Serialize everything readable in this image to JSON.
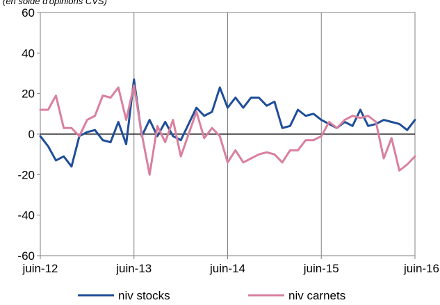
{
  "chart_data": {
    "type": "line",
    "subtitle": "(en solde d'opinions CVS)",
    "xlabel": "",
    "ylabel": "",
    "ylim": [
      -60,
      60
    ],
    "yticks": [
      -60,
      -40,
      -20,
      0,
      20,
      40,
      60
    ],
    "ytick_labels": [
      "-60",
      "-40",
      "-20",
      "0",
      "20",
      "40",
      "60"
    ],
    "x_start": "2012-06",
    "x_end": "2016-06",
    "xticks": [
      "2012-06",
      "2013-06",
      "2014-06",
      "2015-06",
      "2016-06"
    ],
    "xtick_labels": [
      "juin-12",
      "juin-13",
      "juin-14",
      "juin-15",
      "juin-16"
    ],
    "grid": "vertical at ticks",
    "legend": "bottom",
    "x": [
      "2012-06",
      "2012-07",
      "2012-08",
      "2012-09",
      "2012-10",
      "2012-11",
      "2012-12",
      "2013-01",
      "2013-02",
      "2013-03",
      "2013-04",
      "2013-05",
      "2013-06",
      "2013-07",
      "2013-08",
      "2013-09",
      "2013-10",
      "2013-11",
      "2013-12",
      "2014-01",
      "2014-02",
      "2014-03",
      "2014-04",
      "2014-05",
      "2014-06",
      "2014-07",
      "2014-08",
      "2014-09",
      "2014-10",
      "2014-11",
      "2014-12",
      "2015-01",
      "2015-02",
      "2015-03",
      "2015-04",
      "2015-05",
      "2015-06",
      "2015-07",
      "2015-08",
      "2015-09",
      "2015-10",
      "2015-11",
      "2015-12",
      "2016-01",
      "2016-02",
      "2016-03",
      "2016-04",
      "2016-05",
      "2016-06"
    ],
    "series": [
      {
        "name": "niv stocks",
        "color": "#1f4e99",
        "values": [
          -1,
          -6,
          -13,
          -11,
          -16,
          -1,
          1,
          2,
          -3,
          -4,
          6,
          -5,
          27,
          -1,
          7,
          -1,
          6,
          -1,
          -3,
          5,
          13,
          9,
          11,
          23,
          13,
          18,
          13,
          18,
          18,
          14,
          16,
          3,
          4,
          12,
          9,
          10,
          7,
          5,
          3,
          6,
          4,
          12,
          4,
          5,
          7,
          6,
          5,
          2,
          7
        ]
      },
      {
        "name": "niv carnets",
        "color": "#d9809d",
        "values": [
          12,
          12,
          19,
          3,
          3,
          -1,
          7,
          9,
          19,
          18,
          23,
          7,
          24,
          0,
          -20,
          4,
          -4,
          7,
          -11,
          0,
          11,
          -2,
          3,
          -1,
          -14,
          -8,
          -14,
          -12,
          -10,
          -9,
          -10,
          -14,
          -8,
          -8,
          -3,
          -3,
          -1,
          6,
          3,
          7,
          9,
          8,
          9,
          6,
          -12,
          -2,
          -18,
          -15,
          -11
        ]
      }
    ]
  }
}
